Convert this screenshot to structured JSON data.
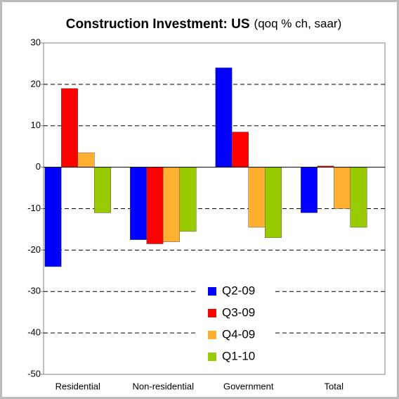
{
  "chart_data": {
    "type": "bar",
    "title": "Construction Investment: US",
    "subtitle": "(qoq % ch, saar)",
    "categories": [
      "Residential",
      "Non-residential",
      "Government",
      "Total"
    ],
    "series": [
      {
        "name": "Q2-09",
        "color": "#0000ff",
        "values": [
          -24,
          -17.5,
          24,
          -11
        ]
      },
      {
        "name": "Q3-09",
        "color": "#ff0000",
        "values": [
          19,
          -18.5,
          8.5,
          0.3
        ]
      },
      {
        "name": "Q4-09",
        "color": "#ffb030",
        "values": [
          3.5,
          -18,
          -14.5,
          -10
        ]
      },
      {
        "name": "Q1-10",
        "color": "#99cc00",
        "values": [
          -11,
          -15.5,
          -17,
          -14.5
        ]
      }
    ],
    "ylim": [
      -50,
      30
    ],
    "yticks": [
      -50,
      -40,
      -30,
      -20,
      -10,
      0,
      10,
      20,
      30
    ],
    "grid": true,
    "legend": "lower center"
  }
}
